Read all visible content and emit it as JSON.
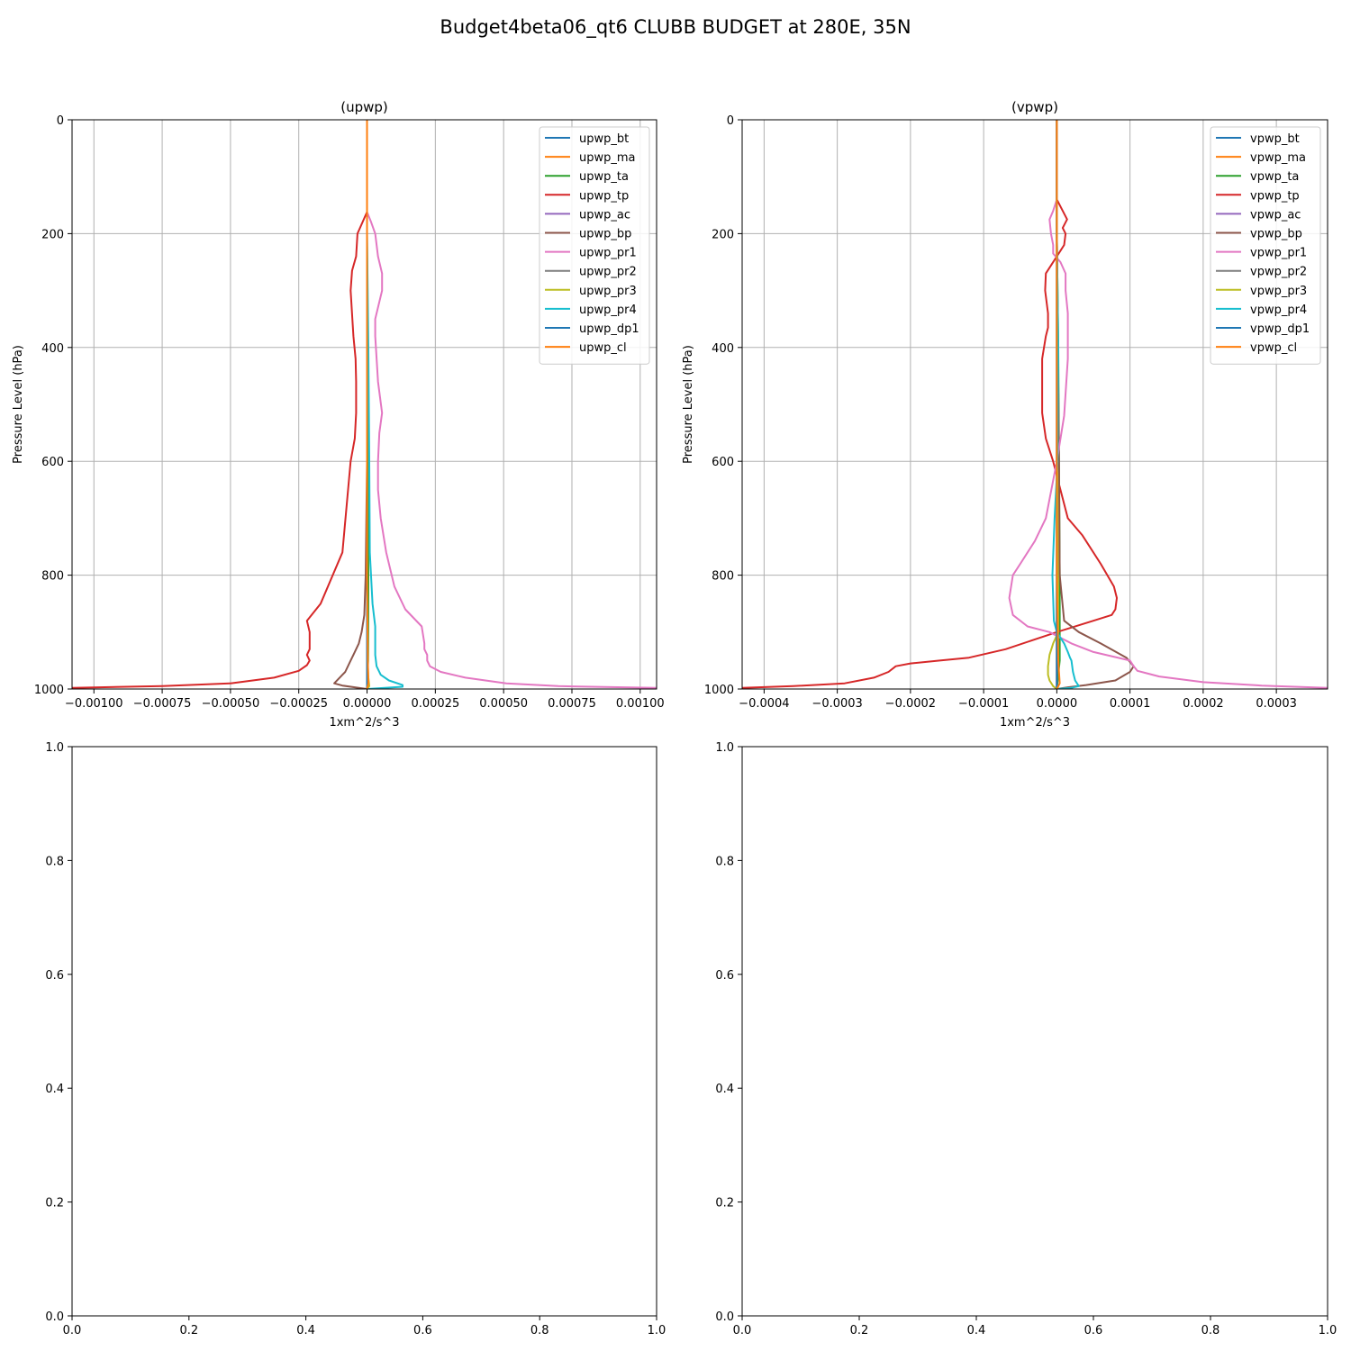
{
  "figure": {
    "suptitle": "Budget4beta06_qt6 CLUBB BUDGET at 280E, 35N"
  },
  "colors": {
    "c0": "#1f77b4",
    "c1": "#ff7f0e",
    "c2": "#2ca02c",
    "c3": "#d62728",
    "c4": "#9467bd",
    "c5": "#8c564b",
    "c6": "#e377c2",
    "c7": "#7f7f7f",
    "c8": "#bcbd22",
    "c9": "#17becf",
    "grid": "#b0b0b0"
  },
  "chart_data": [
    {
      "type": "line",
      "title": "(upwp)",
      "xlabel": "1xm^2/s^3",
      "ylabel": "Pressure Level (hPa)",
      "xlim": [
        -0.00108,
        0.00106
      ],
      "ylim": [
        1000,
        0
      ],
      "grid": true,
      "legend": "top-right",
      "xticks": [
        -0.001,
        -0.00075,
        -0.0005,
        -0.00025,
        0,
        0.00025,
        0.0005,
        0.00075,
        0.001
      ],
      "xtick_labels": [
        "−0.00100",
        "−0.00075",
        "−0.00050",
        "−0.00025",
        "0.00000",
        "0.00025",
        "0.00050",
        "0.00075",
        "0.00100"
      ],
      "yticks": [
        0,
        200,
        400,
        600,
        800,
        1000
      ],
      "ytick_labels": [
        "0",
        "200",
        "400",
        "600",
        "800",
        "1000"
      ],
      "series": [
        {
          "name": "upwp_bt",
          "color": "#1f77b4",
          "x": [
            0,
            0,
            0,
            0,
            0
          ],
          "y": [
            0,
            250,
            500,
            750,
            1000
          ]
        },
        {
          "name": "upwp_ma",
          "color": "#ff7f0e",
          "x": [
            0,
            0,
            0,
            0,
            0
          ],
          "y": [
            0,
            250,
            500,
            750,
            1000
          ]
        },
        {
          "name": "upwp_ta",
          "color": "#2ca02c",
          "x": [
            0,
            0,
            2e-06,
            3e-06,
            5e-06,
            4e-06,
            0
          ],
          "y": [
            0,
            200,
            400,
            600,
            800,
            950,
            1000
          ]
        },
        {
          "name": "upwp_tp",
          "color": "#d62728",
          "x": [
            0,
            0,
            -3.5e-05,
            -4e-05,
            -5.5e-05,
            -6e-05,
            -5e-05,
            -4.2e-05,
            -4e-05,
            -4e-05,
            -4.5e-05,
            -6e-05,
            -9e-05,
            -0.00017,
            -0.00022,
            -0.00021,
            -0.00021,
            -0.00022,
            -0.00021,
            -0.00022,
            -0.00025,
            -0.00034,
            -0.0005,
            -0.00075,
            -0.00108
          ],
          "y": [
            0,
            162,
            200,
            240,
            265,
            300,
            380,
            420,
            460,
            515,
            560,
            600,
            760,
            850,
            880,
            900,
            930,
            940,
            950,
            958,
            968,
            980,
            990,
            995,
            998
          ]
        },
        {
          "name": "upwp_ac",
          "color": "#9467bd",
          "x": [
            0,
            0,
            0,
            0,
            0
          ],
          "y": [
            0,
            250,
            500,
            750,
            1000
          ]
        },
        {
          "name": "upwp_bp",
          "color": "#8c564b",
          "x": [
            0,
            0,
            0,
            -5e-06,
            -1e-05,
            -2e-05,
            -3e-05,
            -5e-05,
            -6e-05,
            -8e-05,
            -0.00012,
            -9e-05,
            -3e-05,
            0
          ],
          "y": [
            0,
            200,
            600,
            800,
            870,
            900,
            920,
            940,
            950,
            970,
            990,
            994,
            998,
            1000
          ]
        },
        {
          "name": "upwp_pr1",
          "color": "#e377c2",
          "x": [
            0,
            0,
            1.5e-05,
            3e-05,
            4e-05,
            5.5e-05,
            5.5e-05,
            3e-05,
            3e-05,
            4e-05,
            5.5e-05,
            4.5e-05,
            4e-05,
            4e-05,
            5e-05,
            7e-05,
            0.0001,
            0.00014,
            0.0002,
            0.00021,
            0.00021,
            0.00022,
            0.00022,
            0.00023,
            0.00027,
            0.00036,
            0.00051,
            0.0007,
            0.00106
          ],
          "y": [
            0,
            162,
            180,
            200,
            240,
            270,
            300,
            350,
            380,
            460,
            515,
            550,
            600,
            650,
            700,
            760,
            820,
            860,
            890,
            920,
            930,
            940,
            950,
            960,
            970,
            980,
            990,
            995,
            998
          ]
        },
        {
          "name": "upwp_pr2",
          "color": "#7f7f7f",
          "x": [
            0,
            0,
            0,
            0
          ],
          "y": [
            0,
            400,
            800,
            1000
          ]
        },
        {
          "name": "upwp_pr3",
          "color": "#bcbd22",
          "x": [
            0,
            0,
            0,
            3e-06,
            5e-06,
            8e-06,
            0
          ],
          "y": [
            0,
            400,
            900,
            960,
            980,
            995,
            1000
          ]
        },
        {
          "name": "upwp_pr4",
          "color": "#17becf",
          "x": [
            0,
            0,
            5e-06,
            8e-06,
            1e-05,
            2e-05,
            3e-05,
            3e-05,
            3.5e-05,
            5e-05,
            8e-05,
            0.00013,
            0.00013,
            0
          ],
          "y": [
            0,
            200,
            400,
            600,
            760,
            850,
            890,
            940,
            960,
            975,
            985,
            993,
            996,
            1000
          ]
        },
        {
          "name": "upwp_dp1",
          "color": "#1f77b4",
          "x": [
            0,
            0,
            0,
            0
          ],
          "y": [
            0,
            400,
            800,
            1000
          ]
        },
        {
          "name": "upwp_cl",
          "color": "#ff7f0e",
          "x": [
            0,
            0,
            0,
            3e-06,
            5e-06,
            0
          ],
          "y": [
            0,
            400,
            800,
            950,
            990,
            1000
          ]
        }
      ]
    },
    {
      "type": "line",
      "title": "(vpwp)",
      "xlabel": "1xm^2/s^3",
      "ylabel": "Pressure Level (hPa)",
      "xlim": [
        -0.00043,
        0.00037
      ],
      "ylim": [
        1000,
        0
      ],
      "grid": true,
      "legend": "top-right",
      "xticks": [
        -0.0004,
        -0.0003,
        -0.0002,
        -0.0001,
        0,
        0.0001,
        0.0002,
        0.0003
      ],
      "xtick_labels": [
        "−0.0004",
        "−0.0003",
        "−0.0002",
        "−0.0001",
        "0.0000",
        "0.0001",
        "0.0002",
        "0.0003"
      ],
      "yticks": [
        0,
        200,
        400,
        600,
        800,
        1000
      ],
      "ytick_labels": [
        "0",
        "200",
        "400",
        "600",
        "800",
        "1000"
      ],
      "series": [
        {
          "name": "vpwp_bt",
          "color": "#1f77b4",
          "x": [
            0,
            0,
            0,
            0,
            0
          ],
          "y": [
            0,
            250,
            500,
            750,
            1000
          ]
        },
        {
          "name": "vpwp_ma",
          "color": "#ff7f0e",
          "x": [
            0,
            0,
            0,
            0,
            0
          ],
          "y": [
            0,
            250,
            500,
            750,
            1000
          ]
        },
        {
          "name": "vpwp_ta",
          "color": "#2ca02c",
          "x": [
            0,
            0,
            2e-06,
            3e-06,
            4e-06,
            4e-06,
            0
          ],
          "y": [
            0,
            200,
            400,
            600,
            800,
            950,
            1000
          ]
        },
        {
          "name": "vpwp_tp",
          "color": "#d62728",
          "x": [
            0,
            0,
            8e-06,
            1.4e-05,
            8e-06,
            1.2e-05,
            1e-05,
            5e-06,
            -1.5e-05,
            -1.6e-05,
            -1.2e-05,
            -1.2e-05,
            -1.5e-05,
            -2e-05,
            -2e-05,
            -2e-05,
            -1.5e-05,
            -5e-06,
            5e-06,
            1.5e-05,
            3.5e-05,
            6e-05,
            7.8e-05,
            8.2e-05,
            8e-05,
            7.5e-05,
            5e-05,
            0,
            -7e-05,
            -0.00012,
            -0.00016,
            -0.0002,
            -0.00022,
            -0.00023,
            -0.00025,
            -0.00029,
            -0.00036,
            -0.00043
          ],
          "y": [
            0,
            140,
            160,
            175,
            190,
            200,
            220,
            230,
            270,
            300,
            340,
            365,
            380,
            420,
            470,
            515,
            560,
            600,
            650,
            700,
            730,
            780,
            820,
            840,
            860,
            870,
            880,
            900,
            930,
            945,
            950,
            955,
            960,
            970,
            980,
            990,
            995,
            998
          ]
        },
        {
          "name": "vpwp_ac",
          "color": "#9467bd",
          "x": [
            0,
            0,
            0,
            0
          ],
          "y": [
            0,
            400,
            800,
            1000
          ]
        },
        {
          "name": "vpwp_bp",
          "color": "#8c564b",
          "x": [
            0,
            0,
            3e-06,
            4e-06,
            1e-05,
            3e-05,
            6e-05,
            9.5e-05,
            0.000105,
            0.0001,
            8e-05,
            4e-05,
            1.5e-05,
            0
          ],
          "y": [
            0,
            200,
            600,
            800,
            880,
            900,
            920,
            945,
            960,
            970,
            985,
            993,
            997,
            1000
          ]
        },
        {
          "name": "vpwp_pr1",
          "color": "#e377c2",
          "x": [
            0,
            0,
            -5e-06,
            -1e-05,
            -8e-06,
            -5e-06,
            -5e-06,
            5e-06,
            1.2e-05,
            1.2e-05,
            1.5e-05,
            1.5e-05,
            1e-05,
            0,
            -1.5e-05,
            -3e-05,
            -5e-05,
            -6e-05,
            -6.5e-05,
            -6e-05,
            -4e-05,
            -1e-05,
            2e-05,
            5e-05,
            0.0001,
            0.000105,
            0.00011,
            0.00014,
            0.0002,
            0.00028,
            0.00037
          ],
          "y": [
            0,
            140,
            160,
            175,
            200,
            220,
            235,
            250,
            270,
            300,
            340,
            420,
            520,
            600,
            700,
            740,
            780,
            800,
            840,
            870,
            890,
            900,
            920,
            935,
            950,
            960,
            968,
            978,
            988,
            994,
            998
          ]
        },
        {
          "name": "vpwp_pr2",
          "color": "#7f7f7f",
          "x": [
            0,
            0,
            0,
            0
          ],
          "y": [
            0,
            400,
            800,
            1000
          ]
        },
        {
          "name": "vpwp_pr3",
          "color": "#bcbd22",
          "x": [
            0,
            0,
            2e-06,
            -5e-06,
            -1e-05,
            -1.2e-05,
            -1.2e-05,
            -1e-05,
            -5e-06,
            0
          ],
          "y": [
            0,
            400,
            900,
            920,
            940,
            960,
            975,
            985,
            995,
            1000
          ]
        },
        {
          "name": "vpwp_pr4",
          "color": "#17becf",
          "x": [
            0,
            0,
            2e-06,
            1e-06,
            -3e-06,
            -6e-06,
            -5e-06,
            -4e-06,
            0,
            1e-05,
            1.5e-05,
            1.8e-05,
            2e-05,
            2.2e-05,
            2.5e-05,
            3e-05,
            2e-05,
            0
          ],
          "y": [
            0,
            200,
            400,
            600,
            700,
            800,
            840,
            880,
            900,
            920,
            935,
            945,
            950,
            970,
            985,
            995,
            998,
            1000
          ]
        },
        {
          "name": "vpwp_dp1",
          "color": "#1f77b4",
          "x": [
            0,
            0,
            0,
            0
          ],
          "y": [
            0,
            400,
            800,
            1000
          ]
        },
        {
          "name": "vpwp_cl",
          "color": "#ff7f0e",
          "x": [
            0,
            0,
            0,
            2e-06,
            4e-06,
            0
          ],
          "y": [
            0,
            400,
            800,
            950,
            990,
            1000
          ]
        }
      ]
    },
    {
      "type": "line",
      "title": "",
      "xlim": [
        0,
        1
      ],
      "ylim": [
        0,
        1
      ],
      "grid": false,
      "xticks": [
        0,
        0.2,
        0.4,
        0.6,
        0.8,
        1
      ],
      "xtick_labels": [
        "0.0",
        "0.2",
        "0.4",
        "0.6",
        "0.8",
        "1.0"
      ],
      "yticks": [
        0,
        0.2,
        0.4,
        0.6,
        0.8,
        1
      ],
      "ytick_labels": [
        "0.0",
        "0.2",
        "0.4",
        "0.6",
        "0.8",
        "1.0"
      ],
      "series": []
    },
    {
      "type": "line",
      "title": "",
      "xlim": [
        0,
        1
      ],
      "ylim": [
        0,
        1
      ],
      "grid": false,
      "xticks": [
        0,
        0.2,
        0.4,
        0.6,
        0.8,
        1
      ],
      "xtick_labels": [
        "0.0",
        "0.2",
        "0.4",
        "0.6",
        "0.8",
        "1.0"
      ],
      "yticks": [
        0,
        0.2,
        0.4,
        0.6,
        0.8,
        1
      ],
      "ytick_labels": [
        "0.0",
        "0.2",
        "0.4",
        "0.6",
        "0.8",
        "1.0"
      ],
      "series": []
    }
  ]
}
